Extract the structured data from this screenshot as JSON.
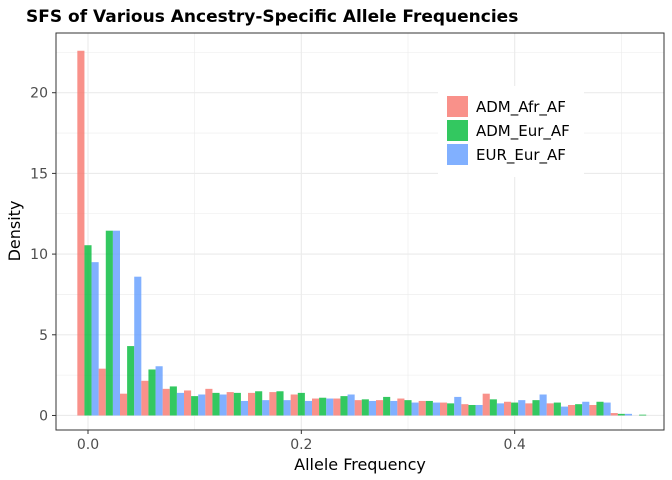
{
  "chart_data": {
    "type": "bar",
    "title": "SFS of Various Ancestry-Specific Allele Frequencies",
    "xlabel": "Allele Frequency",
    "ylabel": "Density",
    "xlim": [
      -0.03,
      0.54
    ],
    "ylim": [
      -0.9,
      23.7
    ],
    "x_ticks": [
      0.0,
      0.2,
      0.4
    ],
    "x_tick_labels": [
      "0.0",
      "0.2",
      "0.4"
    ],
    "y_ticks": [
      0,
      5,
      10,
      15,
      20
    ],
    "y_tick_labels": [
      "0",
      "5",
      "10",
      "15",
      "20"
    ],
    "grid": true,
    "legend_position": "top-right",
    "bin_width": 0.02,
    "x": [
      0.0,
      0.02,
      0.04,
      0.06,
      0.08,
      0.1,
      0.12,
      0.14,
      0.16,
      0.18,
      0.2,
      0.22,
      0.24,
      0.26,
      0.28,
      0.3,
      0.32,
      0.34,
      0.36,
      0.38,
      0.4,
      0.42,
      0.44,
      0.46,
      0.48,
      0.5,
      0.52
    ],
    "series": [
      {
        "name": "ADM_Afr_AF",
        "color": "#F8766D",
        "values": [
          22.6,
          2.9,
          1.35,
          2.15,
          1.65,
          1.55,
          1.65,
          1.45,
          1.4,
          1.45,
          1.3,
          1.05,
          1.05,
          0.95,
          0.95,
          1.05,
          0.9,
          0.8,
          0.7,
          1.35,
          0.85,
          0.75,
          0.75,
          0.65,
          0.65,
          0.15,
          0.0
        ]
      },
      {
        "name": "ADM_Eur_AF",
        "color": "#00BA38",
        "values": [
          10.55,
          11.45,
          4.3,
          2.85,
          1.8,
          1.2,
          1.4,
          1.4,
          1.5,
          1.5,
          1.4,
          1.1,
          1.2,
          1.0,
          1.15,
          0.95,
          0.9,
          0.75,
          0.65,
          1.0,
          0.8,
          0.95,
          0.8,
          0.7,
          0.85,
          0.1,
          0.05
        ]
      },
      {
        "name": "EUR_Eur_AF",
        "color": "#619CFF",
        "values": [
          9.5,
          11.45,
          8.6,
          3.05,
          1.4,
          1.3,
          1.3,
          0.9,
          0.95,
          0.95,
          0.9,
          1.05,
          1.3,
          0.9,
          0.9,
          0.8,
          0.8,
          1.15,
          0.65,
          0.75,
          0.95,
          1.3,
          0.55,
          0.85,
          0.8,
          0.1,
          0.0
        ]
      }
    ]
  }
}
